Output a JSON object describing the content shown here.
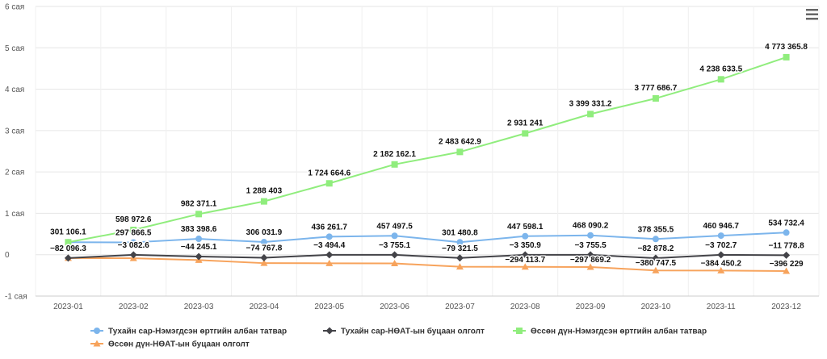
{
  "chart_data": {
    "type": "line",
    "categories": [
      "2023-01",
      "2023-02",
      "2023-03",
      "2023-04",
      "2023-05",
      "2023-06",
      "2023-07",
      "2023-08",
      "2023-09",
      "2023-10",
      "2023-11",
      "2023-12"
    ],
    "y_ticks": [
      {
        "value": -1000000,
        "label": "-1 сая"
      },
      {
        "value": 0,
        "label": "0"
      },
      {
        "value": 1000000,
        "label": "1 сая"
      },
      {
        "value": 2000000,
        "label": "2 сая"
      },
      {
        "value": 3000000,
        "label": "3 сая"
      },
      {
        "value": 4000000,
        "label": "4 сая"
      },
      {
        "value": 5000000,
        "label": "5 сая"
      },
      {
        "value": 6000000,
        "label": "6 сая"
      }
    ],
    "ylim": [
      -1000000,
      6000000
    ],
    "grid": true,
    "legend_position": "bottom",
    "series": [
      {
        "name": "Тухайн сар-Нэмэгдсэн өртгийн албан татвар",
        "color": "#7cb5ec",
        "marker": "circle",
        "values": [
          301106.1,
          297866.5,
          383398.6,
          306031.9,
          436261.7,
          457497.5,
          301480.8,
          447598.1,
          468090.2,
          378355.5,
          460946.7,
          534732.4
        ],
        "labels": [
          "301 106.1",
          "297 866.5",
          "383 398.6",
          "306 031.9",
          "436 261.7",
          "457 497.5",
          "301 480.8",
          "447 598.1",
          "468 090.2",
          "378 355.5",
          "460 946.7",
          "534 732.4"
        ]
      },
      {
        "name": "Тухайн сар-НӨАТ-ын буцаан олголт",
        "color": "#434348",
        "marker": "diamond",
        "values": [
          -82096.3,
          -3082.6,
          -44245.1,
          -74767.8,
          -3494.4,
          -3755.1,
          -79321.5,
          -3350.9,
          -3755.5,
          -82878.2,
          -3702.7,
          -11778.8
        ],
        "labels": [
          "-82 096.3",
          "-3 082.6",
          "-44 245.1",
          "-74 767.8",
          "-3 494.4",
          "-3 755.1",
          "-79 321.5",
          "-3 350.9",
          "-3 755.5",
          "-82 878.2",
          "-3 702.7",
          "-11 778.8"
        ]
      },
      {
        "name": "Өссөн дүн-Нэмэгдсэн өртгийн албан татвар",
        "color": "#90ed7d",
        "marker": "square",
        "values": [
          301106.1,
          598972.6,
          982371.1,
          1288403,
          1724664.6,
          2182162.1,
          2483642.9,
          2931241,
          3399331.2,
          3777686.7,
          4238633.5,
          4773365.8
        ],
        "labels": [
          "301 106.1",
          "598 972.6",
          "982 371.1",
          "1 288 403",
          "1 724 664.6",
          "2 182 162.1",
          "2 483 642.9",
          "2 931 241",
          "3 399 331.2",
          "3 777 686.7",
          "4 238 633.5",
          "4 773 365.8"
        ]
      },
      {
        "name": "Өссөн дүн-НӨАТ-ын буцаан олголт",
        "color": "#f7a35c",
        "marker": "triangle",
        "values": [
          -82096.3,
          -85178.9,
          -129424,
          -204191.8,
          -207686.2,
          -211441.3,
          -290762.8,
          -294113.7,
          -297869.2,
          -380747.5,
          -384450.2,
          -396229
        ],
        "labels": [
          "",
          "",
          "",
          "",
          "",
          "",
          "",
          "-294 113.7",
          "-297 869.2",
          "-380 747.5",
          "-384 450.2",
          "-396 229"
        ]
      }
    ]
  },
  "menu": {
    "icon": "hamburger-menu-icon"
  }
}
